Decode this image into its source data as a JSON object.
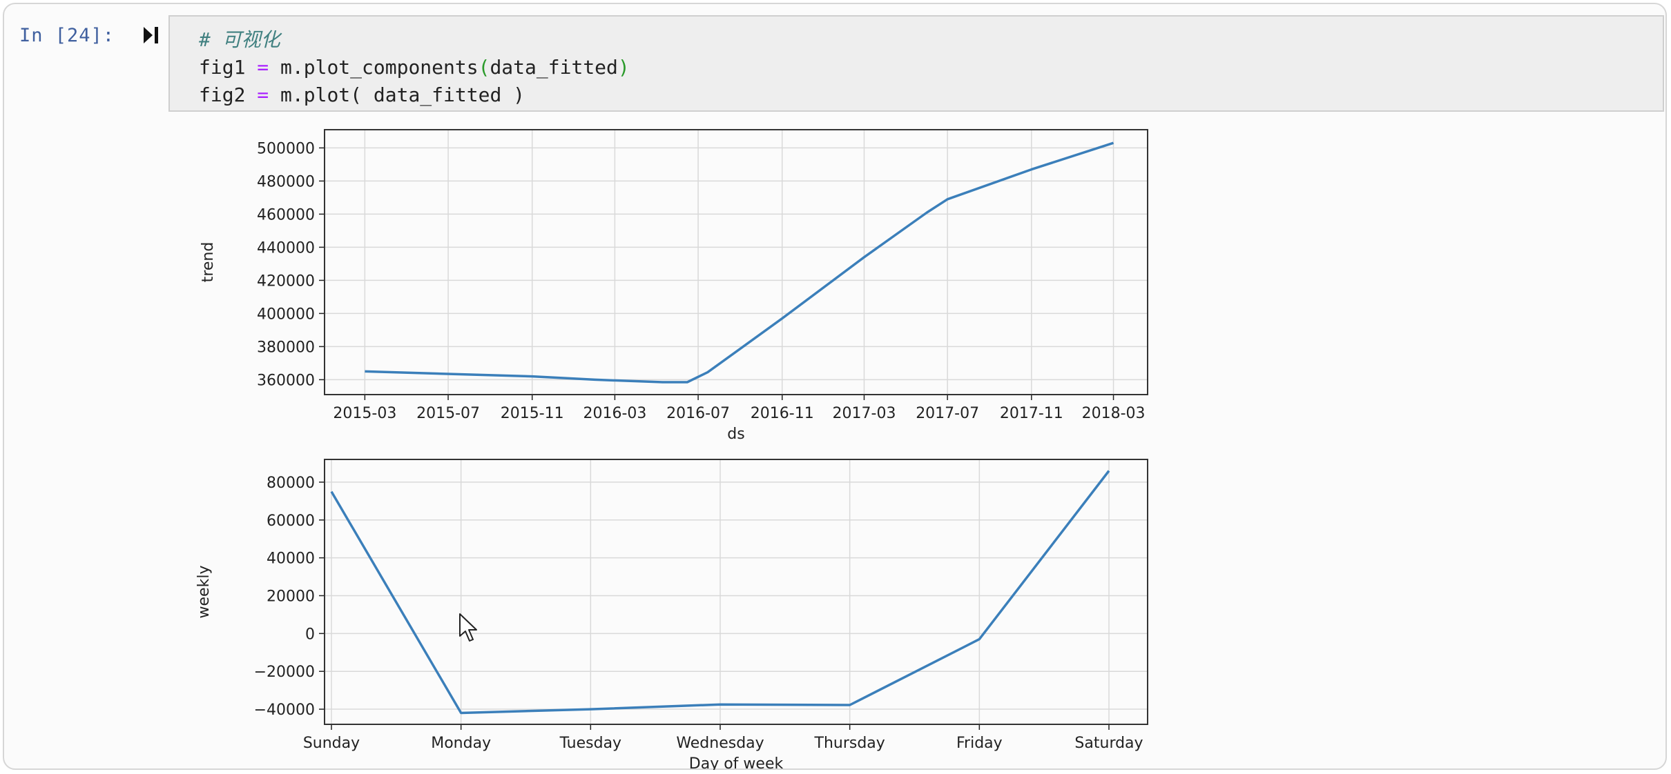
{
  "cell": {
    "prompt": "In  [24]:",
    "code": {
      "comment": "# 可视化",
      "line1_var": "fig1",
      "line1_op": "=",
      "line1_call": "m.plot_components",
      "line1_open": "(",
      "line1_arg": "data_fitted",
      "line1_close": ")",
      "line2_var": "fig2",
      "line2_op": "=",
      "line2_call": "m.plot( data_fitted )"
    }
  },
  "colors": {
    "line": "#3b7fba",
    "grid": "#d9d9d9",
    "prompt": "#40609f"
  },
  "chart_data": [
    {
      "type": "line",
      "xlabel": "ds",
      "ylabel": "trend",
      "x_tick_labels": [
        "2015-03",
        "2015-07",
        "2015-11",
        "2016-03",
        "2016-07",
        "2016-11",
        "2017-03",
        "2017-07",
        "2017-11",
        "2018-03"
      ],
      "x_tick_values": [
        "2015-03-01",
        "2015-07-01",
        "2015-11-01",
        "2016-03-01",
        "2016-07-01",
        "2016-11-01",
        "2017-03-01",
        "2017-07-01",
        "2017-11-01",
        "2018-03-01"
      ],
      "xlim": [
        "2015-01-01",
        "2018-04-20"
      ],
      "y_ticks": [
        360000,
        380000,
        400000,
        420000,
        440000,
        460000,
        480000,
        500000
      ],
      "ylim": [
        351000,
        511000
      ],
      "grid": true,
      "series": [
        {
          "x": [
            "2015-03-01",
            "2015-11-01",
            "2016-02-01",
            "2016-05-10",
            "2016-06-15",
            "2016-07-15",
            "2016-11-01",
            "2017-03-01",
            "2017-06-01",
            "2017-07-01",
            "2017-11-01",
            "2018-03-01"
          ],
          "y": [
            365000,
            362000,
            360000,
            358500,
            358500,
            364500,
            397000,
            434000,
            461000,
            469000,
            487000,
            503000
          ]
        }
      ]
    },
    {
      "type": "line",
      "xlabel": "Day of week",
      "ylabel": "weekly",
      "categories": [
        "Sunday",
        "Monday",
        "Tuesday",
        "Wednesday",
        "Thursday",
        "Friday",
        "Saturday"
      ],
      "values": [
        75000,
        -42000,
        -40000,
        -37500,
        -37800,
        -3000,
        86000
      ],
      "y_ticks": [
        -40000,
        -20000,
        0,
        20000,
        40000,
        60000,
        80000
      ],
      "ylim": [
        -48000,
        92000
      ],
      "grid": true
    }
  ]
}
